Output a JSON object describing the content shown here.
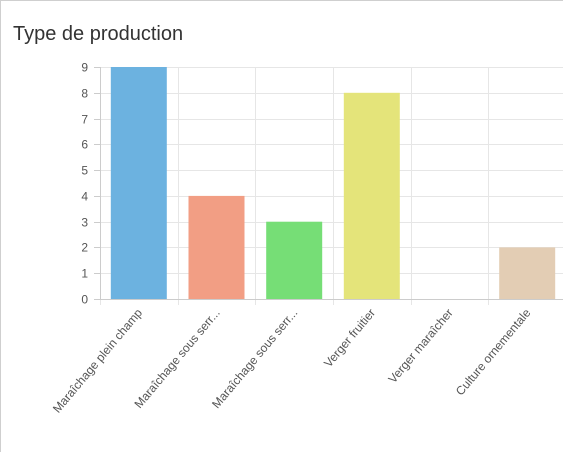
{
  "panel": {
    "title": "Type de production"
  },
  "chart_data": {
    "type": "bar",
    "title": "Type de production",
    "categories": [
      "Maraîchage plein champ",
      "Maraîchage sous serr...",
      "Maraîchage sous serr...",
      "Verger fruitier",
      "Verger maraîcher",
      "Culture ornementale"
    ],
    "values": [
      9,
      4,
      3,
      8,
      0,
      2
    ],
    "colors": [
      "#6cb2e0",
      "#f29e84",
      "#76de76",
      "#e4e47a",
      "#cccccc",
      "#e3cdb4"
    ],
    "ylim": [
      0,
      9
    ],
    "yticks": [
      "0",
      "1",
      "2",
      "3",
      "4",
      "5",
      "6",
      "7",
      "8",
      "9"
    ],
    "grid": true,
    "legend": "none",
    "xlabel": "",
    "ylabel": ""
  }
}
